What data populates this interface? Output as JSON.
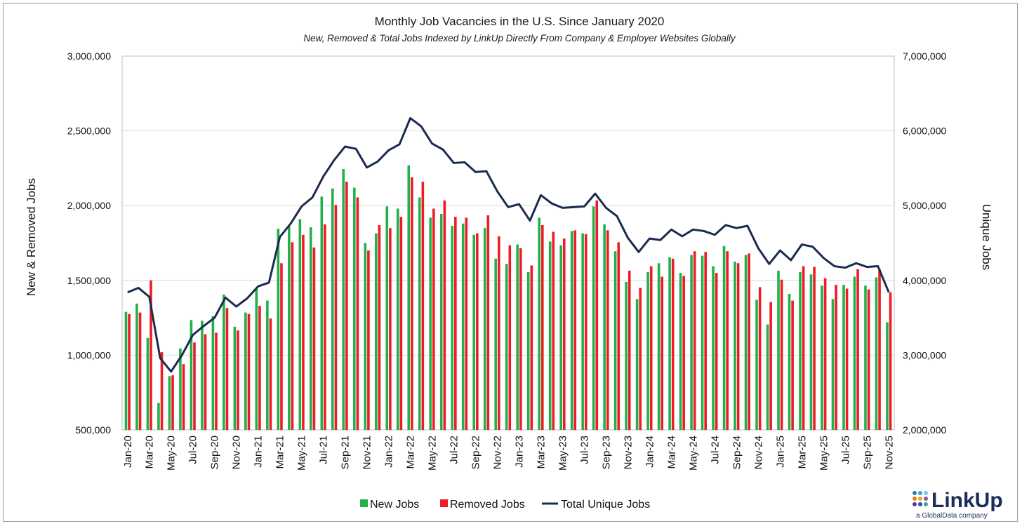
{
  "chart_data": {
    "type": "bar+line",
    "title": "Monthly Job Vacancies in the U.S. Since January 2020",
    "subtitle": "New, Removed & Total Jobs Indexed by LinkUp Directly From Company & Employer Websites Globally",
    "ylabel_left": "New & Removed Jobs",
    "ylabel_right": "Unique Jobs",
    "ylim_left": [
      500000,
      3000000
    ],
    "ylim_right": [
      2000000,
      7000000
    ],
    "yticks_left": [
      "500,000",
      "1,000,000",
      "1,500,000",
      "2,000,000",
      "2,500,000",
      "3,000,000"
    ],
    "yticks_right": [
      "2,000,000",
      "3,000,000",
      "4,000,000",
      "5,000,000",
      "6,000,000",
      "7,000,000"
    ],
    "grid": true,
    "legend_position": "bottom",
    "categories": [
      "Jan-20",
      "Feb-20",
      "Mar-20",
      "Apr-20",
      "May-20",
      "Jun-20",
      "Jul-20",
      "Aug-20",
      "Sep-20",
      "Oct-20",
      "Nov-20",
      "Dec-20",
      "Jan-21",
      "Feb-21",
      "Mar-21",
      "Apr-21",
      "May-21",
      "Jun-21",
      "Jul-21",
      "Aug-21",
      "Sep-21",
      "Oct-21",
      "Nov-21",
      "Dec-21",
      "Jan-22",
      "Feb-22",
      "Mar-22",
      "Apr-22",
      "May-22",
      "Jun-22",
      "Jul-22",
      "Aug-22",
      "Sep-22",
      "Oct-22",
      "Nov-22",
      "Dec-22",
      "Jan-23",
      "Feb-23",
      "Mar-23",
      "Apr-23",
      "May-23",
      "Jun-23",
      "Jul-23",
      "Aug-23",
      "Sep-23",
      "Oct-23",
      "Nov-23",
      "Dec-23",
      "Jan-24",
      "Feb-24",
      "Mar-24",
      "Apr-24",
      "May-24",
      "Jun-24",
      "Jul-24",
      "Aug-24",
      "Sep-24",
      "Oct-24",
      "Nov-24",
      "Dec-24",
      "Jan-25",
      "Feb-25",
      "Mar-25",
      "Apr-25",
      "May-25",
      "Jun-25",
      "Jul-25",
      "Aug-25",
      "Sep-25",
      "Oct-25",
      "Nov-25"
    ],
    "series": [
      {
        "name": "New Jobs",
        "type": "bar",
        "axis": "left",
        "color": "#22b04b",
        "values": [
          1290000,
          1345000,
          1115000,
          680000,
          860000,
          1045000,
          1235000,
          1230000,
          1260000,
          1405000,
          1190000,
          1285000,
          1445000,
          1365000,
          1845000,
          1860000,
          1910000,
          1855000,
          2060000,
          2115000,
          2245000,
          2120000,
          1750000,
          1815000,
          1995000,
          1980000,
          2270000,
          2055000,
          1920000,
          1945000,
          1865000,
          1880000,
          1805000,
          1850000,
          1645000,
          1610000,
          1740000,
          1555000,
          1920000,
          1760000,
          1735000,
          1830000,
          1815000,
          1995000,
          1875000,
          1695000,
          1490000,
          1375000,
          1555000,
          1615000,
          1655000,
          1550000,
          1670000,
          1665000,
          1595000,
          1730000,
          1625000,
          1670000,
          1370000,
          1205000,
          1565000,
          1410000,
          1555000,
          1540000,
          1465000,
          1375000,
          1470000,
          1525000,
          1465000,
          1520000,
          1220000
        ]
      },
      {
        "name": "Removed Jobs",
        "type": "bar",
        "axis": "left",
        "color": "#ee1c25",
        "values": [
          1275000,
          1285000,
          1500000,
          1020000,
          865000,
          940000,
          1085000,
          1140000,
          1150000,
          1315000,
          1165000,
          1275000,
          1330000,
          1245000,
          1615000,
          1755000,
          1805000,
          1720000,
          1875000,
          2005000,
          2160000,
          2055000,
          1700000,
          1870000,
          1850000,
          1925000,
          2190000,
          2160000,
          1980000,
          2035000,
          1925000,
          1920000,
          1815000,
          1935000,
          1795000,
          1735000,
          1715000,
          1600000,
          1870000,
          1825000,
          1780000,
          1835000,
          1810000,
          2035000,
          1835000,
          1755000,
          1565000,
          1450000,
          1595000,
          1525000,
          1645000,
          1530000,
          1695000,
          1690000,
          1550000,
          1695000,
          1615000,
          1680000,
          1455000,
          1355000,
          1505000,
          1365000,
          1595000,
          1590000,
          1515000,
          1470000,
          1445000,
          1575000,
          1440000,
          1575000,
          1420000
        ]
      },
      {
        "name": "Total Unique Jobs",
        "type": "line",
        "axis": "right",
        "color": "#1b2b4f",
        "values": [
          3840000,
          3900000,
          3780000,
          2960000,
          2780000,
          3000000,
          3270000,
          3390000,
          3500000,
          3770000,
          3650000,
          3760000,
          3920000,
          3970000,
          4580000,
          4760000,
          4990000,
          5110000,
          5390000,
          5610000,
          5790000,
          5760000,
          5510000,
          5590000,
          5740000,
          5820000,
          6170000,
          6060000,
          5830000,
          5750000,
          5570000,
          5580000,
          5450000,
          5460000,
          5190000,
          4980000,
          5020000,
          4800000,
          5140000,
          5030000,
          4970000,
          4980000,
          4990000,
          5160000,
          4970000,
          4860000,
          4570000,
          4380000,
          4560000,
          4540000,
          4680000,
          4590000,
          4680000,
          4660000,
          4610000,
          4740000,
          4700000,
          4730000,
          4430000,
          4220000,
          4400000,
          4270000,
          4480000,
          4450000,
          4300000,
          4190000,
          4170000,
          4230000,
          4180000,
          4190000,
          3840000
        ]
      }
    ]
  },
  "logo": {
    "name": "LinkUp",
    "tagline": "a GlobalData company",
    "dot_colors": [
      "#1f7fc1",
      "#35a8de",
      "#7ac6e9",
      "#ef7d22",
      "#f4a52a",
      "#9b4f96",
      "#5b3a8c",
      "#2e4f9e",
      "#3aa3a0"
    ]
  }
}
